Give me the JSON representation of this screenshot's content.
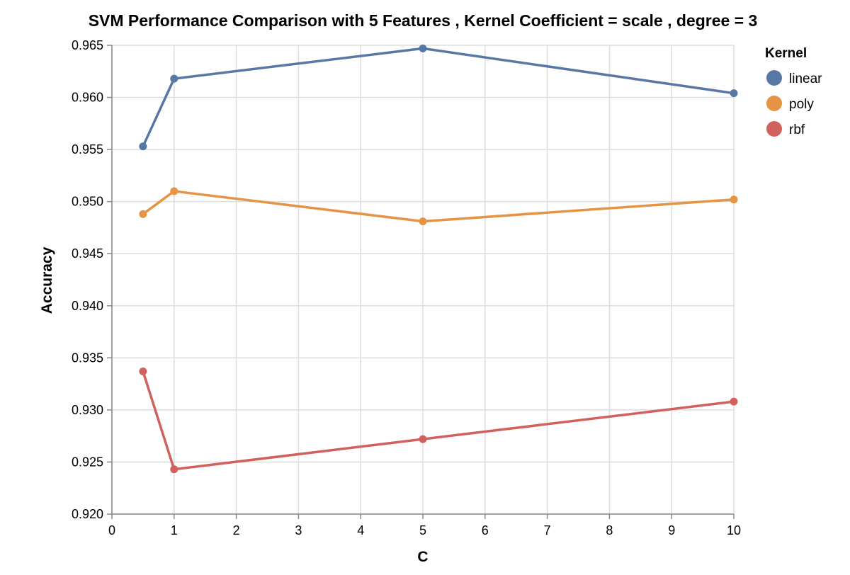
{
  "chart_data": {
    "type": "line",
    "title": "SVM Performance Comparison with 5 Features , Kernel Coefficient = scale , degree = 3",
    "xlabel": "C",
    "ylabel": "Accuracy",
    "xlim": [
      0,
      10
    ],
    "ylim": [
      0.92,
      0.965
    ],
    "x_ticks": [
      0,
      1,
      2,
      3,
      4,
      5,
      6,
      7,
      8,
      9,
      10
    ],
    "x_tick_labels": [
      "0",
      "1",
      "2",
      "3",
      "4",
      "5",
      "6",
      "7",
      "8",
      "9",
      "10"
    ],
    "y_ticks": [
      0.92,
      0.925,
      0.93,
      0.935,
      0.94,
      0.945,
      0.95,
      0.955,
      0.96,
      0.965
    ],
    "y_tick_labels": [
      "0.920",
      "0.925",
      "0.930",
      "0.935",
      "0.940",
      "0.945",
      "0.950",
      "0.955",
      "0.960",
      "0.965"
    ],
    "grid": true,
    "legend_title": "Kernel",
    "legend_position": "top-right",
    "x": [
      0.5,
      1,
      5,
      10
    ],
    "series": [
      {
        "name": "linear",
        "color": "#5778a4",
        "values": [
          0.9553,
          0.9618,
          0.9647,
          0.9604
        ]
      },
      {
        "name": "poly",
        "color": "#e49444",
        "values": [
          0.9488,
          0.951,
          0.9481,
          0.9502
        ]
      },
      {
        "name": "rbf",
        "color": "#d1615d",
        "values": [
          0.9337,
          0.9243,
          0.9272,
          0.9308
        ]
      }
    ]
  }
}
